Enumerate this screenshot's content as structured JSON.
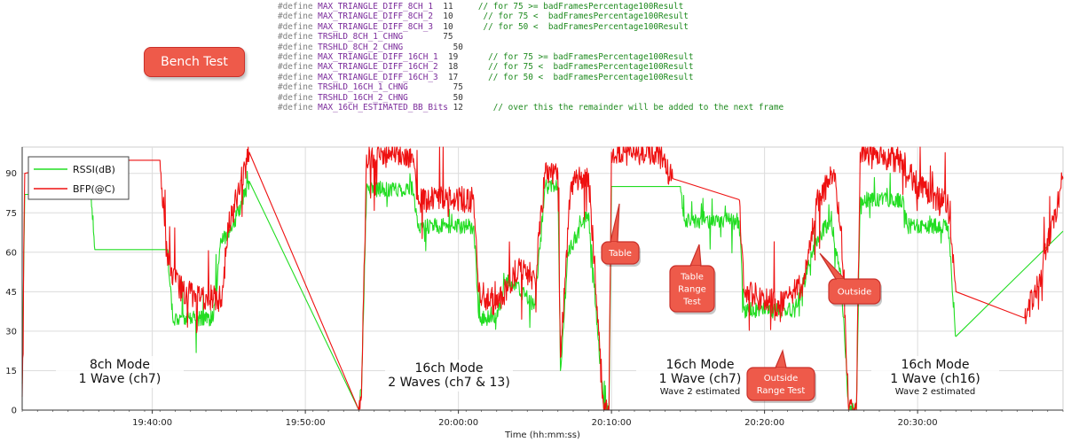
{
  "code": {
    "lines": [
      {
        "kw": "#define",
        "name": "MAX_TRIANGLE_DIFF_8CH_1",
        "pad": "  ",
        "value": "11",
        "comment": "     // for 75 >= badFramesPercentage100Result"
      },
      {
        "kw": "#define",
        "name": "MAX_TRIANGLE_DIFF_8CH_2",
        "pad": "  ",
        "value": "10",
        "comment": "      // for 75 <  badFramesPercentage100Result"
      },
      {
        "kw": "#define",
        "name": "MAX_TRIANGLE_DIFF_8CH_3",
        "pad": "  ",
        "value": "10",
        "comment": "      // for 50 <  badFramesPercentage100Result"
      },
      {
        "kw": "#define",
        "name": "TRSHLD_8CH_1_CHNG",
        "pad": "        ",
        "value": "75",
        "comment": ""
      },
      {
        "kw": "#define",
        "name": "TRSHLD_8CH_2_CHNG",
        "pad": "          ",
        "value": "50",
        "comment": ""
      },
      {
        "kw": "#define",
        "name": "MAX_TRIANGLE_DIFF_16CH_1",
        "pad": "  ",
        "value": "19",
        "comment": "      // for 75 >= badFramesPercentage100Result"
      },
      {
        "kw": "#define",
        "name": "MAX_TRIANGLE_DIFF_16CH_2",
        "pad": "  ",
        "value": "18",
        "comment": "      // for 75 <  badFramesPercentage100Result"
      },
      {
        "kw": "#define",
        "name": "MAX_TRIANGLE_DIFF_16CH_3",
        "pad": "  ",
        "value": "17",
        "comment": "      // for 50 <  badFramesPercentage100Result"
      },
      {
        "kw": "#define",
        "name": "TRSHLD_16CH_1_CHNG",
        "pad": "         ",
        "value": "75",
        "comment": ""
      },
      {
        "kw": "#define",
        "name": "TRSHLD_16CH_2_CHNG",
        "pad": "         ",
        "value": "50",
        "comment": ""
      },
      {
        "kw": "#define",
        "name": "MAX_16CH_ESTIMATED_BB_Bits",
        "pad": " ",
        "value": "12",
        "comment": "      // over this the remainder will be added to the next frame"
      }
    ]
  },
  "bench_label": "Bench Test",
  "colors": {
    "rssi": "#22dd22",
    "bfp": "#ee1111",
    "callout_fill": "#ee5a4a",
    "callout_stroke": "#c9302a"
  },
  "chart_data": {
    "type": "line",
    "xlabel": "Time (hh:mm:ss)",
    "ylabel": "",
    "ylim": [
      0,
      100
    ],
    "yticks": [
      0,
      15,
      30,
      45,
      60,
      75,
      90
    ],
    "xlim": [
      "19:31:30",
      "20:39:30"
    ],
    "xticks": [
      "19:40:00",
      "19:50:00",
      "20:00:00",
      "20:10:00",
      "20:20:00",
      "20:30:00"
    ],
    "grid": true,
    "legend_position": "top-left",
    "series": [
      {
        "name": "RSSI(dB)",
        "color": "#22dd22",
        "noise": 3,
        "points": [
          [
            "19:31:30",
            10
          ],
          [
            "19:31:40",
            82
          ],
          [
            "19:36:00",
            82
          ],
          [
            "19:36:15",
            61
          ],
          [
            "19:41:00",
            61
          ],
          [
            "19:41:20",
            35
          ],
          [
            "19:44:00",
            35
          ],
          [
            "19:44:30",
            65
          ],
          [
            "19:45:10",
            68
          ],
          [
            "19:46:20",
            87
          ],
          [
            "19:53:30",
            0
          ],
          [
            "19:53:40",
            8
          ],
          [
            "19:54:00",
            84
          ],
          [
            "19:57:00",
            84
          ],
          [
            "19:57:20",
            70
          ],
          [
            "20:01:00",
            70
          ],
          [
            "20:01:20",
            35
          ],
          [
            "20:02:30",
            35
          ],
          [
            "20:03:10",
            50
          ],
          [
            "20:05:00",
            40
          ],
          [
            "20:05:40",
            85
          ],
          [
            "20:06:30",
            85
          ],
          [
            "20:06:40",
            15
          ],
          [
            "20:07:10",
            60
          ],
          [
            "20:08:30",
            75
          ],
          [
            "20:09:30",
            0
          ],
          [
            "20:09:50",
            0
          ],
          [
            "20:10:00",
            85
          ],
          [
            "20:14:30",
            85
          ],
          [
            "20:14:45",
            72
          ],
          [
            "20:18:20",
            72
          ],
          [
            "20:18:40",
            38
          ],
          [
            "20:22:00",
            38
          ],
          [
            "20:23:30",
            66
          ],
          [
            "20:24:20",
            72
          ],
          [
            "20:25:00",
            50
          ],
          [
            "20:25:30",
            0
          ],
          [
            "20:26:00",
            0
          ],
          [
            "20:26:15",
            80
          ],
          [
            "20:29:00",
            80
          ],
          [
            "20:29:20",
            70
          ],
          [
            "20:32:00",
            70
          ],
          [
            "20:32:30",
            28
          ],
          [
            "20:39:30",
            68
          ]
        ]
      },
      {
        "name": "BFP(@C)",
        "color": "#ee1111",
        "noise": 5,
        "points": [
          [
            "19:31:30",
            5
          ],
          [
            "19:31:40",
            90
          ],
          [
            "19:36:00",
            95
          ],
          [
            "19:40:30",
            95
          ],
          [
            "19:41:00",
            55
          ],
          [
            "19:42:00",
            45
          ],
          [
            "19:44:30",
            42
          ],
          [
            "19:45:00",
            70
          ],
          [
            "19:46:20",
            98
          ],
          [
            "19:53:30",
            0
          ],
          [
            "19:53:40",
            5
          ],
          [
            "19:54:00",
            97
          ],
          [
            "19:57:00",
            97
          ],
          [
            "19:57:20",
            80
          ],
          [
            "20:01:00",
            80
          ],
          [
            "20:01:20",
            45
          ],
          [
            "20:02:30",
            40
          ],
          [
            "20:04:00",
            55
          ],
          [
            "20:05:00",
            50
          ],
          [
            "20:05:40",
            90
          ],
          [
            "20:06:30",
            90
          ],
          [
            "20:06:40",
            20
          ],
          [
            "20:07:20",
            85
          ],
          [
            "20:08:30",
            90
          ],
          [
            "20:09:30",
            0
          ],
          [
            "20:09:50",
            0
          ],
          [
            "20:10:00",
            98
          ],
          [
            "20:13:00",
            98
          ],
          [
            "20:14:00",
            88
          ],
          [
            "20:18:20",
            80
          ],
          [
            "20:18:40",
            45
          ],
          [
            "20:21:00",
            40
          ],
          [
            "20:22:30",
            48
          ],
          [
            "20:23:30",
            80
          ],
          [
            "20:24:30",
            90
          ],
          [
            "20:25:00",
            70
          ],
          [
            "20:25:30",
            0
          ],
          [
            "20:26:00",
            0
          ],
          [
            "20:26:15",
            98
          ],
          [
            "20:29:00",
            95
          ],
          [
            "20:30:00",
            85
          ],
          [
            "20:32:00",
            78
          ],
          [
            "20:32:30",
            45
          ],
          [
            "20:37:00",
            35
          ],
          [
            "20:38:00",
            50
          ],
          [
            "20:39:30",
            88
          ]
        ]
      }
    ],
    "annotations": [
      {
        "lines": [
          "8ch Mode",
          "1 Wave (ch7)"
        ],
        "sub": ""
      },
      {
        "lines": [
          "16ch Mode",
          "2 Waves (ch7 & 13)"
        ],
        "sub": ""
      },
      {
        "lines": [
          "16ch Mode",
          "1 Wave (ch7)"
        ],
        "sub": "Wave 2 estimated"
      },
      {
        "lines": [
          "16ch Mode",
          "1 Wave (ch16)"
        ],
        "sub": "Wave 2 estimated"
      }
    ],
    "callouts": [
      {
        "lines": [
          "Table"
        ]
      },
      {
        "lines": [
          "Table",
          "Range",
          "Test"
        ]
      },
      {
        "lines": [
          "Outside"
        ]
      },
      {
        "lines": [
          "Outside",
          "Range Test"
        ]
      }
    ]
  }
}
